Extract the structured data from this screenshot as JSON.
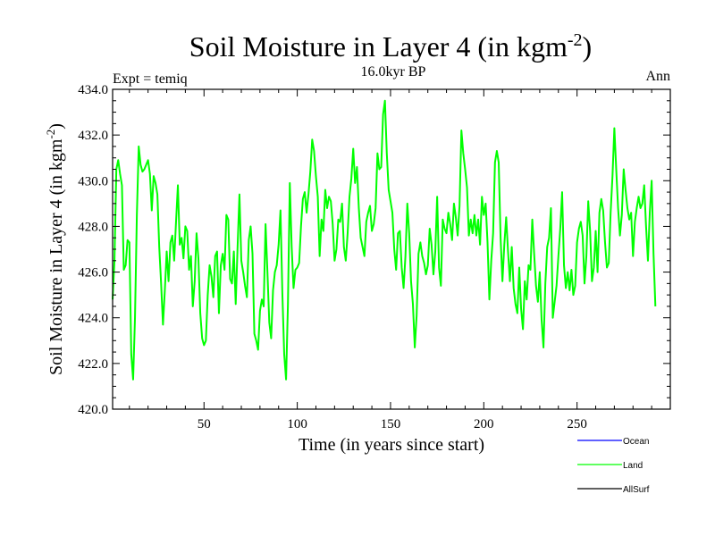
{
  "chart_data": {
    "type": "line",
    "title": "Soil Moisture in Layer 4 (in kgm",
    "title_sup": "-2",
    "title_end": ")",
    "subtitle_left": "Expt = temiq",
    "subtitle_center": "16.0kyr BP",
    "subtitle_right": "Ann",
    "xlabel": "Time (in years since start)",
    "ylabel": "Soil Moisture in Layer 4 (in kgm",
    "ylabel_sup": "-2",
    "ylabel_end": ")",
    "xlim": [
      1,
      300
    ],
    "ylim": [
      420,
      434
    ],
    "x_ticks": [
      50,
      100,
      150,
      200,
      250
    ],
    "y_ticks": [
      "420.0",
      "422.0",
      "424.0",
      "426.0",
      "428.0",
      "430.0",
      "432.0",
      "434.0"
    ],
    "legend": [
      {
        "name": "Ocean",
        "color": "#0000ff"
      },
      {
        "name": "Land",
        "color": "#00ff00"
      },
      {
        "name": "AllSurf",
        "color": "#000000"
      }
    ],
    "series": [
      {
        "name": "Land",
        "color": "#00ff00",
        "x_start": 1,
        "x_step": 1,
        "values": [
          424.8,
          426.5,
          430.5,
          430.9,
          430.3,
          429.8,
          426.1,
          426.3,
          427.4,
          427.3,
          422.4,
          421.3,
          424.0,
          428.5,
          431.5,
          430.7,
          430.4,
          430.5,
          430.7,
          430.9,
          430.3,
          428.7,
          430.2,
          429.9,
          429.4,
          427.1,
          425.5,
          423.7,
          425.2,
          426.9,
          425.6,
          427.3,
          427.6,
          426.5,
          428.2,
          429.8,
          427.2,
          427.5,
          426.6,
          428.0,
          427.8,
          426.1,
          426.7,
          424.5,
          425.6,
          427.7,
          426.6,
          424.2,
          423.1,
          422.8,
          423.0,
          425.0,
          426.3,
          425.8,
          424.9,
          426.7,
          426.9,
          424.2,
          426.3,
          426.8,
          426.1,
          428.5,
          428.3,
          425.7,
          425.5,
          426.9,
          424.6,
          427.1,
          429.4,
          426.5,
          426.0,
          425.4,
          424.9,
          427.4,
          428.0,
          426.8,
          423.3,
          423.0,
          422.6,
          424.3,
          424.8,
          424.5,
          428.1,
          426.0,
          423.8,
          423.1,
          425.2,
          426.0,
          426.3,
          427.2,
          428.7,
          425.1,
          422.4,
          421.3,
          424.6,
          429.9,
          427.1,
          425.3,
          426.1,
          426.2,
          426.4,
          428.0,
          429.2,
          429.5,
          428.6,
          429.4,
          430.4,
          431.8,
          431.3,
          430.2,
          429.3,
          426.7,
          428.3,
          427.8,
          429.6,
          428.8,
          429.3,
          429.1,
          428.1,
          426.5,
          427.0,
          428.3,
          428.2,
          429.0,
          427.1,
          426.5,
          427.7,
          429.3,
          430.1,
          431.4,
          429.9,
          430.6,
          428.8,
          427.5,
          427.1,
          426.7,
          428.2,
          428.6,
          428.9,
          427.8,
          428.1,
          428.8,
          431.2,
          430.5,
          430.6,
          432.9,
          433.5,
          431.2,
          429.6,
          429.1,
          428.6,
          427.0,
          426.1,
          427.7,
          427.8,
          426.2,
          425.3,
          426.7,
          429.0,
          427.7,
          425.6,
          424.6,
          422.7,
          424.1,
          426.8,
          427.3,
          426.7,
          426.4,
          425.9,
          426.3,
          427.9,
          427.2,
          425.9,
          426.9,
          429.3,
          426.2,
          425.4,
          428.3,
          427.9,
          427.7,
          428.6,
          428.1,
          427.4,
          429.0,
          428.4,
          427.6,
          428.9,
          432.2,
          431.2,
          430.5,
          429.7,
          427.6,
          428.3,
          427.7,
          428.5,
          427.6,
          428.3,
          427.2,
          429.3,
          428.5,
          429.0,
          427.3,
          424.8,
          426.5,
          427.7,
          430.8,
          431.3,
          430.8,
          427.5,
          425.6,
          427.2,
          428.4,
          426.9,
          425.6,
          427.1,
          425.3,
          424.6,
          424.2,
          426.2,
          424.4,
          423.5,
          425.6,
          424.8,
          426.3,
          426.1,
          428.3,
          426.8,
          425.4,
          424.7,
          426.0,
          423.9,
          422.7,
          425.5,
          427.1,
          427.5,
          428.8,
          424.0,
          424.7,
          425.4,
          426.7,
          427.9,
          429.5,
          426.3,
          425.3,
          426.0,
          425.2,
          426.1,
          425.0,
          425.4,
          427.3,
          427.9,
          428.2,
          427.6,
          425.5,
          426.7,
          429.1,
          427.8,
          425.6,
          426.2,
          427.8,
          426.0,
          428.6,
          429.2,
          428.7,
          427.3,
          426.2,
          426.4,
          428.6,
          430.2,
          432.3,
          430.5,
          428.8,
          427.6,
          428.5,
          430.5,
          429.6,
          428.8,
          428.3,
          428.6,
          426.7,
          428.2,
          428.8,
          429.3,
          428.8,
          429.0,
          429.8,
          428.0,
          426.5,
          428.6,
          430.0,
          426.8,
          424.5
        ]
      }
    ]
  }
}
